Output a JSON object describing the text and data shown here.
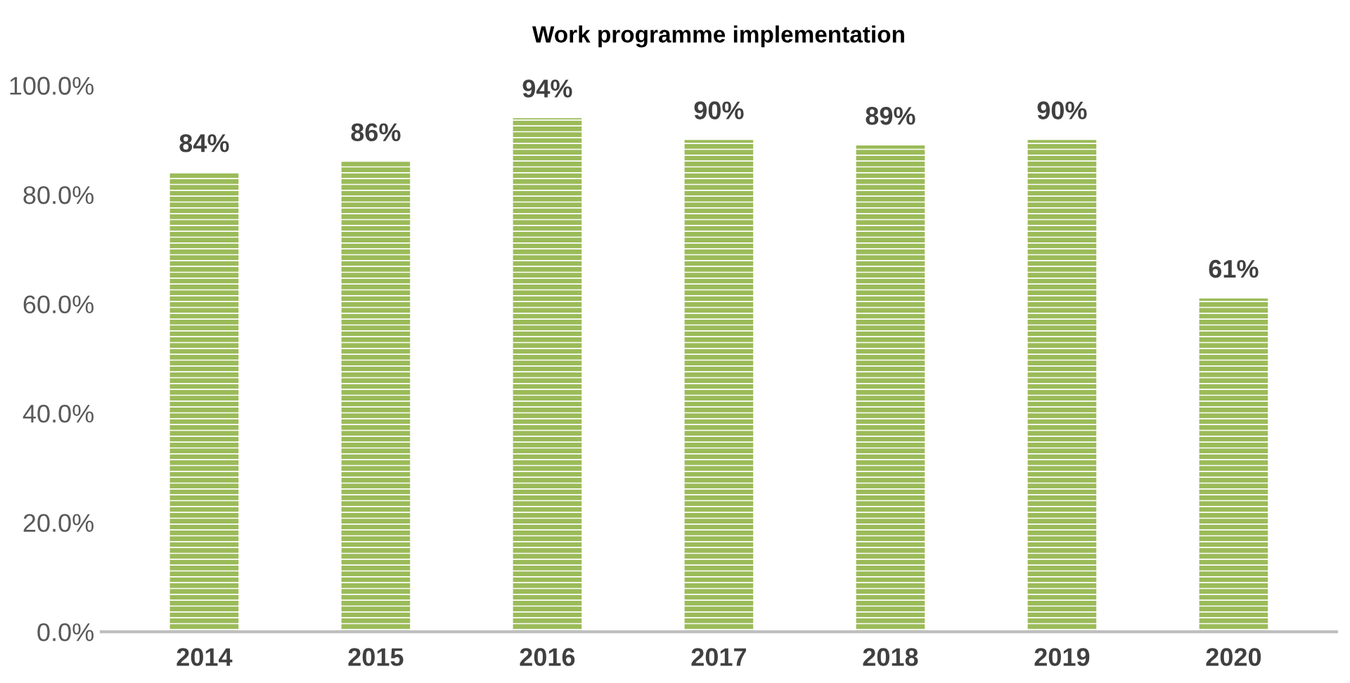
{
  "chart_data": {
    "type": "bar",
    "title": "Work programme implementation",
    "categories": [
      "2014",
      "2015",
      "2016",
      "2017",
      "2018",
      "2019",
      "2020"
    ],
    "values": [
      84,
      86,
      94,
      90,
      89,
      90,
      61
    ],
    "value_labels": [
      "84%",
      "86%",
      "94%",
      "90%",
      "89%",
      "90%",
      "61%"
    ],
    "color": "#9bbb59",
    "ylim": [
      0,
      100
    ],
    "yticks": [
      {
        "value": 0,
        "label": "0.0%"
      },
      {
        "value": 20,
        "label": "20.0%"
      },
      {
        "value": 40,
        "label": "40.0%"
      },
      {
        "value": 60,
        "label": "60.0%"
      },
      {
        "value": 80,
        "label": "80.0%"
      },
      {
        "value": 100,
        "label": "100.0%"
      }
    ],
    "grid": false
  }
}
